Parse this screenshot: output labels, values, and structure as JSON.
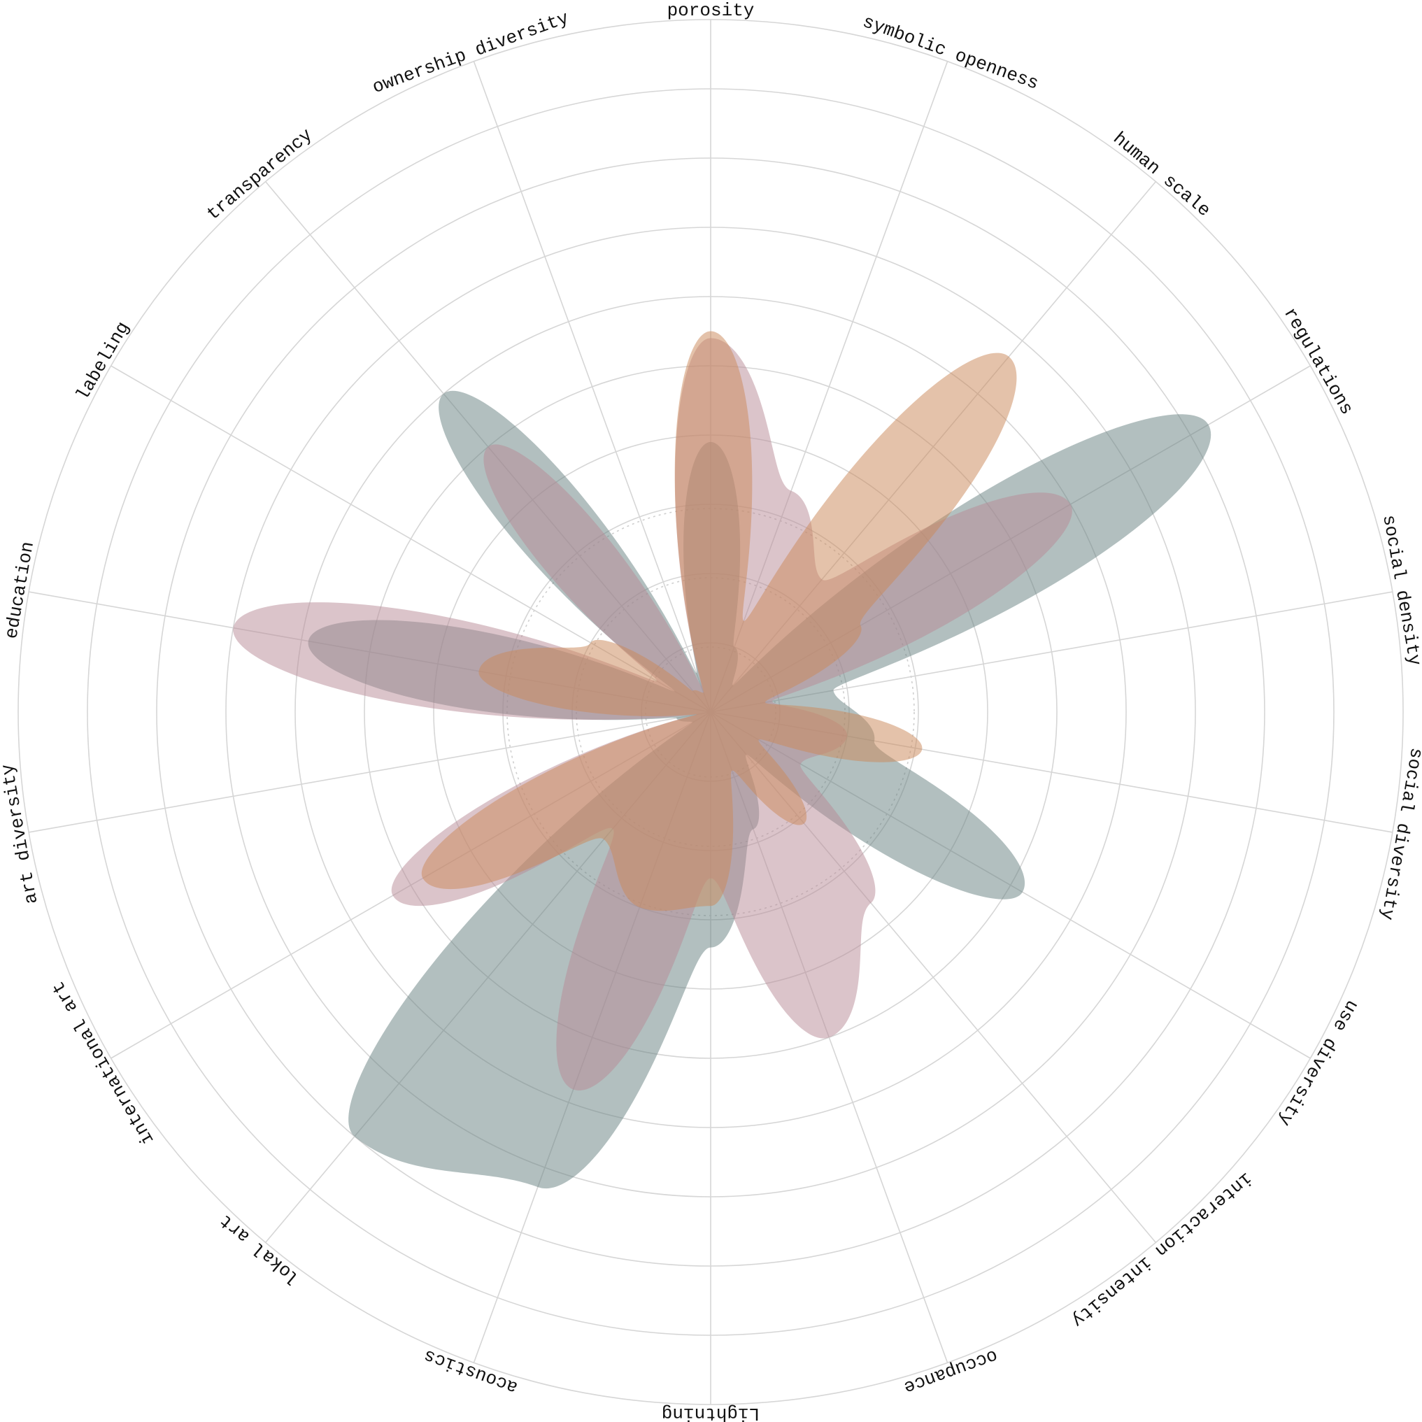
{
  "chart_data": {
    "type": "radar",
    "shape": "smooth-polar-area",
    "axes": [
      "porosity",
      "symbolic openness",
      "human scale",
      "regulations",
      "social density",
      "social diversity",
      "use diversity",
      "interaction intensity",
      "occupance",
      "Lightning",
      "acoustics",
      "lokal art",
      "international art",
      "art diversity",
      "education",
      "labeling",
      "transparency",
      "ownership diversity"
    ],
    "r_max": 10,
    "rings": [
      1,
      2,
      3,
      4,
      5,
      6,
      7,
      8,
      9,
      10
    ],
    "inner_dashed_rings": [
      1,
      2,
      3
    ],
    "grid": true,
    "legend": "none",
    "series": [
      {
        "color": "#65807f",
        "opacity": 0.5,
        "values": [
          3.9,
          1.0,
          0.5,
          8.3,
          1.8,
          2.4,
          5.2,
          0.8,
          1.8,
          3.4,
          7.3,
          8.0,
          0.3,
          0.5,
          5.9,
          0.6,
          6.0,
          0.6
        ]
      },
      {
        "color": "#b78a96",
        "opacity": 0.5,
        "values": [
          5.4,
          3.4,
          2.5,
          6.0,
          0.9,
          2.0,
          1.5,
          3.6,
          5.0,
          2.4,
          5.8,
          2.2,
          5.3,
          0.2,
          7.0,
          0.9,
          5.0,
          0.4
        ]
      },
      {
        "color": "#cb8b5c",
        "opacity": 0.52,
        "values": [
          5.5,
          1.4,
          6.7,
          2.5,
          0.8,
          3.1,
          0.8,
          2.1,
          0.9,
          2.8,
          3.0,
          2.4,
          4.8,
          0.2,
          3.4,
          2.0,
          0.4,
          0.3
        ]
      }
    ]
  }
}
